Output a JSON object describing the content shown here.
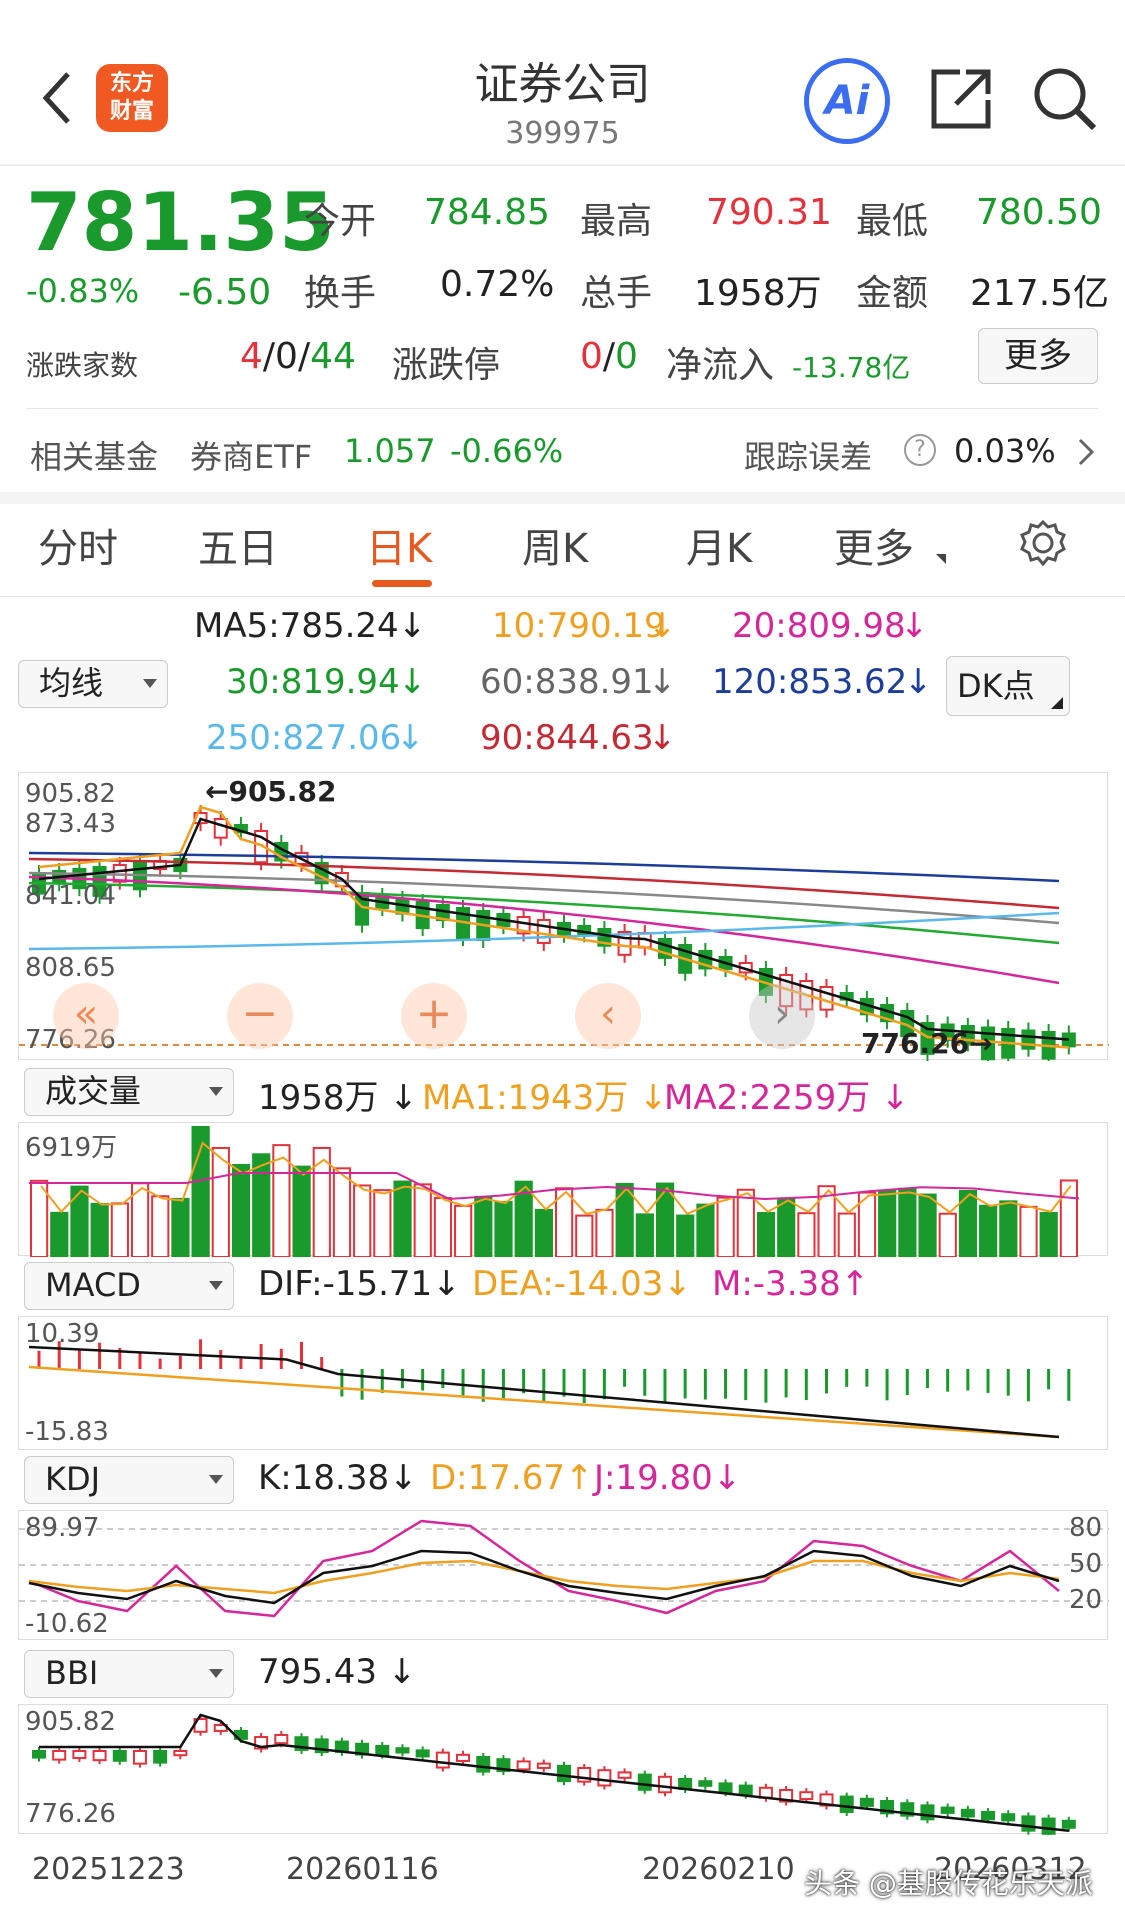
{
  "header": {
    "title": "证券公司",
    "code": "399975",
    "logo_line1": "东方",
    "logo_line2": "财富",
    "ai_label": "Ai"
  },
  "quote": {
    "price": "781.35",
    "change_pct": "-0.83%",
    "change": "-6.50",
    "open_label": "今开",
    "open": "784.85",
    "high_label": "最高",
    "high": "790.31",
    "low_label": "最低",
    "low": "780.50",
    "turnover_label": "换手",
    "turnover": "0.72%",
    "volume_label": "总手",
    "volume": "1958万",
    "amount_label": "金额",
    "amount": "217.5亿",
    "breadth_label": "涨跌家数",
    "breadth_up": "4",
    "breadth_flat": "/0/",
    "breadth_down": "44",
    "limit_label": "涨跌停",
    "limit_up": "0",
    "limit_sep": "/",
    "limit_down": "0",
    "netflow_label": "净流入",
    "netflow": "-13.78亿",
    "more_label": "更多"
  },
  "fund": {
    "label": "相关基金",
    "name": "券商ETF",
    "price": "1.057",
    "change": "-0.66%",
    "track_label": "跟踪误差",
    "track_value": "0.03%"
  },
  "tabs": [
    "分时",
    "五日",
    "日K",
    "周K",
    "月K",
    "更多"
  ],
  "active_tab": 2,
  "ma": {
    "selector": "均线",
    "ma5": "MA5:785.24",
    "ma10": "10:790.19",
    "ma20": "20:809.98",
    "ma30": "30:819.94",
    "ma60": "60:838.91",
    "ma120": "120:853.62",
    "ma250": "250:827.06",
    "ma90": "90:844.63",
    "dk_label": "DK点"
  },
  "kline": {
    "y_labels": [
      "905.82",
      "873.43",
      "841.04",
      "808.65",
      "776.26"
    ],
    "max_label": "905.82",
    "min_label": "776.26"
  },
  "volume": {
    "selector": "成交量",
    "value": "1958万",
    "ma1": "MA1:1943万",
    "ma2": "MA2:2259万",
    "y_label": "6919万"
  },
  "macd": {
    "selector": "MACD",
    "dif": "DIF:-15.71",
    "dea": "DEA:-14.03",
    "m": "M:-3.38",
    "y_top": "10.39",
    "y_bottom": "-15.83"
  },
  "kdj": {
    "selector": "KDJ",
    "k": "K:18.38",
    "d": "D:17.67",
    "j": "J:19.80",
    "y_top": "89.97",
    "y_bottom": "-10.62",
    "levels": [
      "80",
      "50",
      "20"
    ]
  },
  "bbi": {
    "selector": "BBI",
    "value": "795.43",
    "y_top": "905.82",
    "y_bottom": "776.26"
  },
  "dates": [
    "20251223",
    "20260116",
    "20260210",
    "20260312"
  ],
  "watermark": "头条 @基股传花乐天派",
  "colors": {
    "up": "#e3323b",
    "down": "#1a9a2c",
    "ma5": "#111111",
    "ma10": "#f0a020",
    "ma20": "#d5269a",
    "ma30": "#22aa33",
    "ma60": "#888888",
    "ma120": "#1d3d9a",
    "ma250": "#5ab8ea",
    "ma90": "#c42a33"
  }
}
